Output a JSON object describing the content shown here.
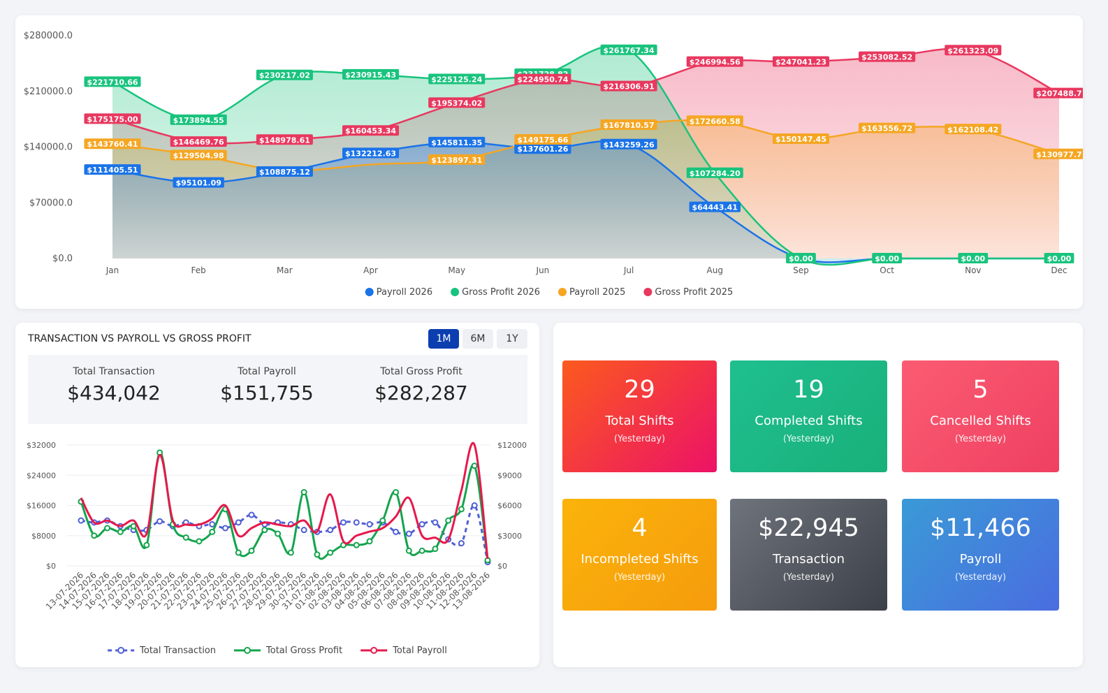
{
  "chart_data": [
    {
      "type": "line",
      "area": true,
      "data_labels": true,
      "grid": false,
      "legend": "bottom",
      "categories": [
        "Jan",
        "Feb",
        "Mar",
        "Apr",
        "May",
        "Jun",
        "Jul",
        "Aug",
        "Sep",
        "Oct",
        "Nov",
        "Dec"
      ],
      "ylim": [
        0,
        280000
      ],
      "yticks": [
        {
          "value": 0,
          "label": "$0.0"
        },
        {
          "value": 70000,
          "label": "$70000.0"
        },
        {
          "value": 140000,
          "label": "$140000.0"
        },
        {
          "value": 210000,
          "label": "$210000.0"
        },
        {
          "value": 280000,
          "label": "$280000.0"
        }
      ],
      "series": [
        {
          "name": "Payroll 2026",
          "color": "#1a73e8",
          "values": [
            111405.51,
            95101.09,
            108875.12,
            132212.63,
            145811.35,
            137601.26,
            143259.26,
            64443.41,
            0,
            0,
            0,
            0
          ],
          "value_labels": [
            "$111405.51",
            "$95101.09",
            "$108875.12",
            "$132212.63",
            "$145811.35",
            "$137601.26",
            "$143259.26",
            "$64443.41",
            null,
            null,
            null,
            null
          ]
        },
        {
          "name": "Gross Profit 2026",
          "color": "#19c37d",
          "values": [
            221710.66,
            173894.55,
            230217.02,
            230915.43,
            225125.24,
            231728.82,
            261767.34,
            107284.2,
            0,
            0,
            0,
            0
          ],
          "value_labels": [
            "$221710.66",
            "$173894.55",
            "$230217.02",
            "$230915.43",
            "$225125.24",
            "$231728.82",
            "$261767.34",
            "$107284.20",
            "$0.00",
            "$0.00",
            "$0.00",
            "$0.00"
          ]
        },
        {
          "name": "Payroll 2025",
          "color": "#f5a623",
          "values": [
            143760.41,
            129504.98,
            110500,
            118000,
            123897.31,
            149175.66,
            167810.57,
            172660.58,
            150147.45,
            163556.72,
            162108.42,
            130977.7
          ],
          "value_labels": [
            "$143760.41",
            "$129504.98",
            null,
            null,
            "$123897.31",
            "$149175.66",
            "$167810.57",
            "$172660.58",
            "$150147.45",
            "$163556.72",
            "$162108.42",
            "$130977.7"
          ]
        },
        {
          "name": "Gross Profit 2025",
          "color": "#e8385f",
          "values": [
            175175,
            146469.76,
            148978.61,
            160453.34,
            195374.02,
            224950.74,
            216306.91,
            246994.56,
            247041.23,
            253082.52,
            261323.09,
            207488.7
          ],
          "value_labels": [
            "$175175.00",
            "$146469.76",
            "$148978.61",
            "$160453.34",
            "$195374.02",
            "$224950.74",
            "$216306.91",
            "$246994.56",
            "$247041.23",
            "$253082.52",
            "$261323.09",
            "$207488.7"
          ]
        }
      ]
    },
    {
      "type": "line",
      "title": "TRANSACTION VS PAYROLL VS GROSS PROFIT",
      "grid": true,
      "legend": "bottom",
      "categories": [
        "13-07-2026",
        "14-07-2026",
        "15-07-2026",
        "16-07-2026",
        "17-07-2026",
        "18-07-2026",
        "19-07-2026",
        "20-07-2026",
        "21-07-2026",
        "22-07-2026",
        "23-07-2026",
        "24-07-2026",
        "25-07-2026",
        "26-07-2026",
        "27-07-2026",
        "28-07-2026",
        "29-07-2026",
        "30-07-2026",
        "31-07-2026",
        "01-08-2026",
        "02-08-2026",
        "03-08-2026",
        "04-08-2026",
        "05-08-2026",
        "06-08-2026",
        "07-08-2026",
        "08-08-2026",
        "09-08-2026",
        "10-08-2026",
        "11-08-2026",
        "12-08-2026",
        "13-08-2026"
      ],
      "ylim": [
        0,
        32000
      ],
      "yticks": [
        {
          "value": 0,
          "label": "$0"
        },
        {
          "value": 8000,
          "label": "$8000"
        },
        {
          "value": 16000,
          "label": "$16000"
        },
        {
          "value": 24000,
          "label": "$24000"
        },
        {
          "value": 32000,
          "label": "$32000"
        }
      ],
      "y2lim": [
        0,
        12000
      ],
      "y2ticks": [
        {
          "value": 0,
          "label": "$0"
        },
        {
          "value": 3000,
          "label": "$3000"
        },
        {
          "value": 6000,
          "label": "$6000"
        },
        {
          "value": 9000,
          "label": "$9000"
        },
        {
          "value": 12000,
          "label": "$12000"
        }
      ],
      "series": [
        {
          "name": "Total Transaction",
          "color": "#4f5fd6",
          "dash": true,
          "marker": true,
          "values": [
            12000,
            11500,
            12000,
            10500,
            9500,
            9500,
            11800,
            10500,
            11500,
            10500,
            11000,
            10000,
            11500,
            13500,
            11000,
            11500,
            11000,
            9500,
            9000,
            9500,
            11500,
            11500,
            11000,
            11500,
            9000,
            8500,
            11000,
            11500,
            7000,
            6000,
            16000,
            1000
          ]
        },
        {
          "name": "Total Gross Profit",
          "color": "#14a44d",
          "dash": false,
          "marker": true,
          "values": [
            17000,
            8000,
            10000,
            9000,
            10500,
            5500,
            30000,
            11000,
            7500,
            6500,
            9000,
            15000,
            3500,
            4000,
            9500,
            8500,
            3500,
            19500,
            3000,
            3500,
            5500,
            5500,
            6500,
            12000,
            19500,
            4000,
            4000,
            4500,
            12000,
            15000,
            26500,
            1500
          ]
        },
        {
          "name": "Total Payroll",
          "color": "#e6194b",
          "dash": false,
          "marker": false,
          "axis": "y2",
          "values": [
            6750,
            4300,
            4500,
            3950,
            4500,
            3200,
            11000,
            4500,
            4100,
            4100,
            4700,
            6000,
            3000,
            3750,
            4300,
            4100,
            3950,
            4500,
            3400,
            7100,
            2450,
            3000,
            3400,
            3750,
            4900,
            6750,
            3000,
            2800,
            2600,
            7500,
            12000,
            700
          ]
        }
      ]
    }
  ],
  "controls": {
    "range_buttons": [
      {
        "label": "1M",
        "active": true
      },
      {
        "label": "6M",
        "active": false
      },
      {
        "label": "1Y",
        "active": false
      }
    ]
  },
  "stats": [
    {
      "label": "Total Transaction",
      "value": "$434,042"
    },
    {
      "label": "Total Payroll",
      "value": "$151,755"
    },
    {
      "label": "Total Gross Profit",
      "value": "$282,287"
    }
  ],
  "tiles": [
    {
      "value": "29",
      "label": "Total Shifts",
      "sub": "(Yesterday)"
    },
    {
      "value": "19",
      "label": "Completed Shifts",
      "sub": "(Yesterday)"
    },
    {
      "value": "5",
      "label": "Cancelled Shifts",
      "sub": "(Yesterday)"
    },
    {
      "value": "4",
      "label": "Incompleted Shifts",
      "sub": "(Yesterday)"
    },
    {
      "value": "$22,945",
      "label": "Transaction",
      "sub": "(Yesterday)"
    },
    {
      "value": "$11,466",
      "label": "Payroll",
      "sub": "(Yesterday)"
    }
  ]
}
